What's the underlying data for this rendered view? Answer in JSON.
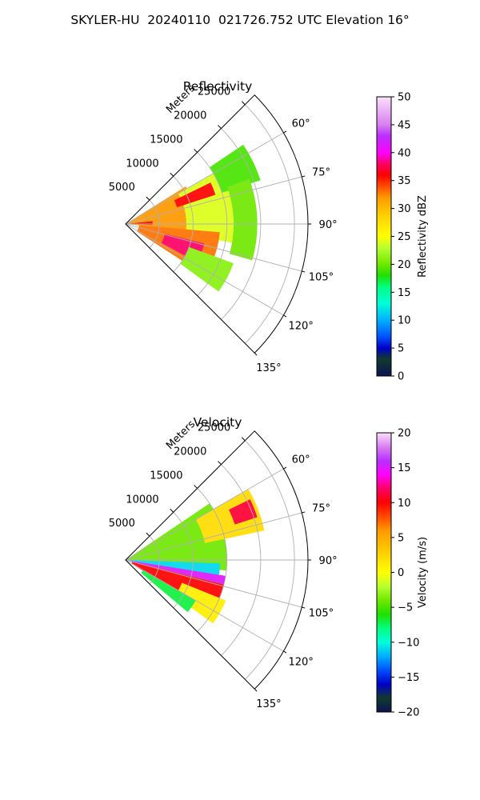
{
  "figure": {
    "suptitle": "SKYLER-HU  20240110  021726.752 UTC Elevation 16°"
  },
  "chart_data": [
    {
      "type": "heatmap",
      "projection": "polar-sector",
      "title": "Reflectivity",
      "r_axis_label": "Meters",
      "r_ticks": [
        5000,
        10000,
        15000,
        20000,
        25000
      ],
      "r_lim": [
        0,
        27000
      ],
      "theta_ticks": [
        "60°",
        "75°",
        "90°",
        "105°",
        "120°",
        "135°"
      ],
      "theta_tick_values": [
        60,
        75,
        90,
        105,
        120,
        135
      ],
      "theta_range": [
        45,
        135
      ],
      "grid": true,
      "colorbar": {
        "label": "Reflectivity dBZ",
        "range": [
          0,
          50
        ],
        "ticks": [
          "0",
          "5",
          "10",
          "15",
          "20",
          "25",
          "30",
          "35",
          "40",
          "45",
          "50"
        ],
        "tick_values": [
          0,
          5,
          10,
          15,
          20,
          25,
          30,
          35,
          40,
          45,
          50
        ],
        "stops": [
          [
            0,
            "#0a1452"
          ],
          [
            3,
            "#123a2e"
          ],
          [
            5,
            "#0000c8"
          ],
          [
            7,
            "#0050ff"
          ],
          [
            10,
            "#00b0ff"
          ],
          [
            13,
            "#00ffd8"
          ],
          [
            16,
            "#00ff80"
          ],
          [
            18,
            "#20e000"
          ],
          [
            20,
            "#70e800"
          ],
          [
            23,
            "#b8ff30"
          ],
          [
            25,
            "#ffff00"
          ],
          [
            29,
            "#ffcc00"
          ],
          [
            32,
            "#ff9900"
          ],
          [
            34,
            "#ff4a00"
          ],
          [
            36,
            "#ff0000"
          ],
          [
            38,
            "#ff0066"
          ],
          [
            40,
            "#ff00ff"
          ],
          [
            43,
            "#b830ff"
          ],
          [
            45,
            "#d880f0"
          ],
          [
            50,
            "#fbe0fb"
          ]
        ]
      },
      "echo_regions": [
        {
          "az": [
            58,
            96
          ],
          "range_m": [
            0,
            10500
          ],
          "value": 32
        },
        {
          "az": [
            60,
            100
          ],
          "range_m": [
            9000,
            17000
          ],
          "value": 24
        },
        {
          "az": [
            64,
            72
          ],
          "range_m": [
            8000,
            14000
          ],
          "value": 36
        },
        {
          "az": [
            95,
            123
          ],
          "range_m": [
            2000,
            14000
          ],
          "value": 33
        },
        {
          "az": [
            104,
            118
          ],
          "range_m": [
            6000,
            12000
          ],
          "value": 38
        },
        {
          "az": [
            110,
            126
          ],
          "range_m": [
            10000,
            17000
          ],
          "value": 21
        },
        {
          "az": [
            56,
            72
          ],
          "range_m": [
            15000,
            21000
          ],
          "value": 19
        },
        {
          "az": [
            70,
            106
          ],
          "range_m": [
            16000,
            19500
          ],
          "value": 20
        },
        {
          "az": [
            84,
            92
          ],
          "range_m": [
            0,
            4000
          ],
          "value": 36
        }
      ]
    },
    {
      "type": "heatmap",
      "projection": "polar-sector",
      "title": "Velocity",
      "r_axis_label": "Meters",
      "r_ticks": [
        5000,
        10000,
        15000,
        20000,
        25000
      ],
      "r_lim": [
        0,
        27000
      ],
      "theta_ticks": [
        "60°",
        "75°",
        "90°",
        "105°",
        "120°",
        "135°"
      ],
      "theta_tick_values": [
        60,
        75,
        90,
        105,
        120,
        135
      ],
      "theta_range": [
        45,
        135
      ],
      "grid": true,
      "colorbar": {
        "label": "Velocity (m/s)",
        "range": [
          -20,
          20
        ],
        "ticks": [
          "−20",
          "−15",
          "−10",
          "−5",
          "0",
          "5",
          "10",
          "15",
          "20"
        ],
        "tick_values": [
          -20,
          -15,
          -10,
          -5,
          0,
          5,
          10,
          15,
          20
        ],
        "stops": [
          [
            -20,
            "#0a1452"
          ],
          [
            -18,
            "#123a2e"
          ],
          [
            -16,
            "#0000c8"
          ],
          [
            -14,
            "#0050ff"
          ],
          [
            -12,
            "#00b0ff"
          ],
          [
            -10,
            "#00ffd8"
          ],
          [
            -8,
            "#00ff80"
          ],
          [
            -6,
            "#20e000"
          ],
          [
            -4,
            "#70e800"
          ],
          [
            -2,
            "#b8ff30"
          ],
          [
            0,
            "#ffff00"
          ],
          [
            3,
            "#ffcc00"
          ],
          [
            6,
            "#ff9900"
          ],
          [
            8,
            "#ff4a00"
          ],
          [
            10,
            "#ff0000"
          ],
          [
            12,
            "#ff0066"
          ],
          [
            14,
            "#ff00ff"
          ],
          [
            16,
            "#b830ff"
          ],
          [
            18,
            "#d880f0"
          ],
          [
            20,
            "#fbe0fb"
          ]
        ]
      },
      "echo_regions": [
        {
          "az": [
            56,
            96
          ],
          "range_m": [
            0,
            15000
          ],
          "value": -4
        },
        {
          "az": [
            60,
            78
          ],
          "range_m": [
            12000,
            21000
          ],
          "value": 2
        },
        {
          "az": [
            92,
            100
          ],
          "range_m": [
            0,
            14000
          ],
          "value": -11
        },
        {
          "az": [
            99,
            104
          ],
          "range_m": [
            0,
            15000
          ],
          "value": 15
        },
        {
          "az": [
            104,
            122
          ],
          "range_m": [
            1000,
            15000
          ],
          "value": 10
        },
        {
          "az": [
            112,
            126
          ],
          "range_m": [
            9000,
            16000
          ],
          "value": 1
        },
        {
          "az": [
            120,
            130
          ],
          "range_m": [
            3000,
            12000
          ],
          "value": -7
        },
        {
          "az": [
            64,
            72
          ],
          "range_m": [
            17000,
            20500
          ],
          "value": 11
        }
      ]
    }
  ]
}
